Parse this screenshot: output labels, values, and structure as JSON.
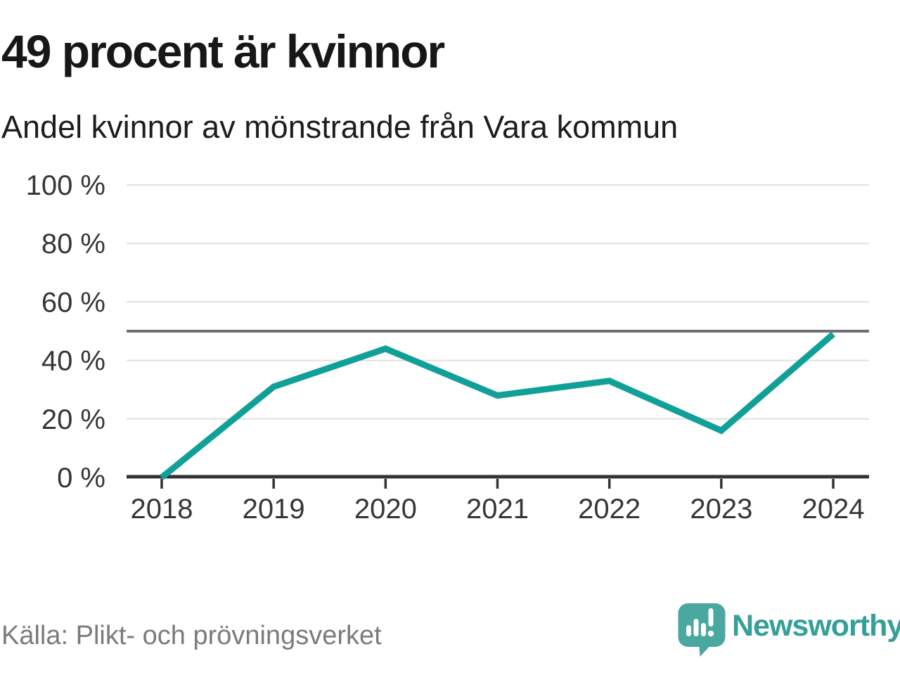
{
  "header": {
    "title": "49 procent är kvinnor",
    "subtitle": "Andel kvinnor av mönstrande från Vara kommun"
  },
  "chart_data": {
    "type": "line",
    "title": "49 procent är kvinnor",
    "subtitle": "Andel kvinnor av mönstrande från Vara kommun",
    "x": [
      "2018",
      "2019",
      "2020",
      "2021",
      "2022",
      "2023",
      "2024"
    ],
    "series": [
      {
        "name": "Andel kvinnor av mönstrande",
        "values": [
          0,
          31,
          44,
          28,
          33,
          16,
          49
        ]
      }
    ],
    "ylim": [
      0,
      100
    ],
    "yticks": [
      {
        "value": 100,
        "label": "100 %"
      },
      {
        "value": 80,
        "label": "80 %"
      },
      {
        "value": 60,
        "label": "60 %"
      },
      {
        "value": 40,
        "label": "40 %"
      },
      {
        "value": 20,
        "label": "20 %"
      },
      {
        "value": 0,
        "label": "0 %"
      }
    ],
    "reference_line": {
      "value": 50,
      "color": "#6E6E76"
    },
    "grid": true,
    "legend": "none",
    "colors": {
      "line": "#11A098",
      "grid": "#E0E0E0",
      "axis": "#333333",
      "tick_text": "#363636"
    }
  },
  "footer": {
    "source": "Källa: Plikt- och prövningsverket",
    "logo_text": "Newsworthy",
    "logo_color": "#4AA8A0"
  }
}
